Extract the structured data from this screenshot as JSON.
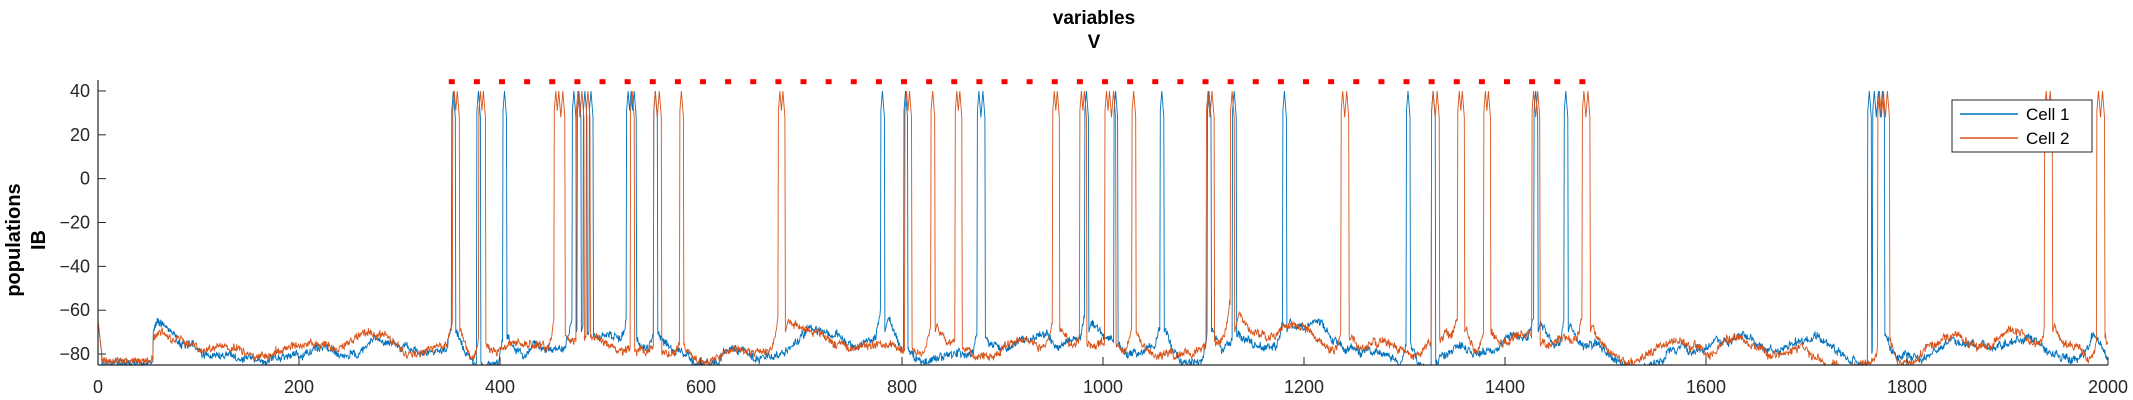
{
  "chart_data": {
    "type": "line",
    "title": [
      "variables",
      "V"
    ],
    "ylabel": [
      "populations",
      "IB"
    ],
    "xlabel": "",
    "xlim": [
      0,
      2000
    ],
    "ylim": [
      -85,
      45
    ],
    "xticks": [
      0,
      200,
      400,
      600,
      800,
      1000,
      1200,
      1400,
      1600,
      1800,
      2000
    ],
    "yticks": [
      -80,
      -60,
      -40,
      -20,
      0,
      20,
      40
    ],
    "grid": false,
    "legend_position": "top-right",
    "series": [
      {
        "name": "Cell 1",
        "color": "#0072BD",
        "baseline": -78,
        "spikes": [
          353,
          378,
          404,
          473,
          478,
          484,
          490,
          527,
          530,
          533,
          554,
          780,
          803,
          876,
          880,
          983,
          1012,
          1058,
          1105,
          1130,
          1180,
          1303,
          1328,
          1430,
          1460,
          1762,
          1767,
          1771,
          1775
        ],
        "bumps": [
          [
            60,
            6
          ],
          [
            353,
            12
          ],
          [
            404,
            14
          ],
          [
            473,
            10
          ],
          [
            527,
            12
          ],
          [
            554,
            10
          ],
          [
            780,
            14
          ],
          [
            876,
            12
          ],
          [
            983,
            10
          ],
          [
            1058,
            12
          ],
          [
            1105,
            12
          ],
          [
            1180,
            10
          ],
          [
            1303,
            12
          ],
          [
            1430,
            10
          ],
          [
            1460,
            12
          ],
          [
            1770,
            18
          ],
          [
            1985,
            8
          ]
        ]
      },
      {
        "name": "Cell 2",
        "color": "#D95319",
        "baseline": -77,
        "spikes": [
          354,
          357,
          380,
          383,
          455,
          458,
          462,
          477,
          481,
          487,
          531,
          554,
          558,
          580,
          678,
          681,
          804,
          807,
          830,
          854,
          857,
          951,
          954,
          978,
          981,
          1003,
          1006,
          1010,
          1030,
          1104,
          1108,
          1128,
          1238,
          1242,
          1328,
          1332,
          1354,
          1357,
          1380,
          1383,
          1428,
          1432,
          1478,
          1482,
          1772,
          1776,
          1780,
          1938,
          1942,
          1990,
          1994
        ],
        "bumps": [
          [
            60,
            5
          ],
          [
            354,
            12
          ],
          [
            380,
            10
          ],
          [
            455,
            12
          ],
          [
            580,
            10
          ],
          [
            678,
            12
          ],
          [
            830,
            10
          ],
          [
            951,
            12
          ],
          [
            1030,
            10
          ],
          [
            1128,
            12
          ],
          [
            1238,
            12
          ],
          [
            1354,
            10
          ],
          [
            1380,
            10
          ],
          [
            1478,
            12
          ],
          [
            1775,
            15
          ],
          [
            1940,
            15
          ],
          [
            1992,
            14
          ]
        ]
      }
    ],
    "markers": {
      "color": "#FF0000",
      "y": 44,
      "x": [
        352,
        377,
        402,
        427,
        452,
        477,
        502,
        527,
        552,
        577,
        602,
        627,
        652,
        677,
        702,
        727,
        752,
        777,
        802,
        827,
        852,
        877,
        902,
        927,
        952,
        977,
        1002,
        1027,
        1052,
        1077,
        1102,
        1127,
        1152,
        1177,
        1202,
        1227,
        1252,
        1277,
        1302,
        1327,
        1352,
        1377,
        1402,
        1427,
        1452,
        1477
      ]
    }
  }
}
